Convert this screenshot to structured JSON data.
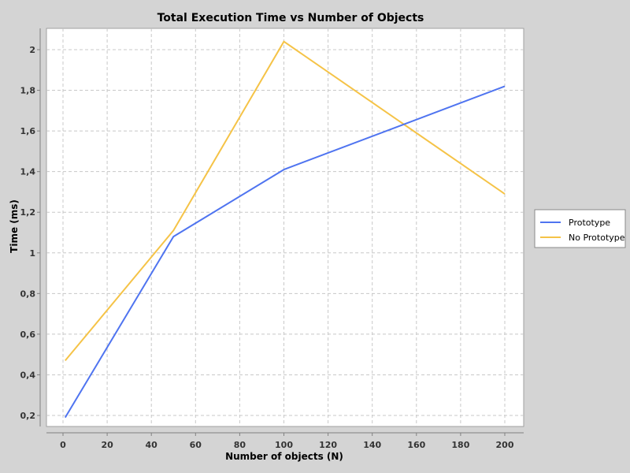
{
  "chart_data": {
    "type": "line",
    "title": "Total Execution Time vs Number of Objects",
    "xlabel": "Number of objects (N)",
    "ylabel": "Time (ms)",
    "x": [
      1,
      50,
      100,
      200
    ],
    "xlim": [
      -8,
      208
    ],
    "ylim": [
      0.15,
      2.12
    ],
    "xticks": [
      0,
      20,
      40,
      60,
      80,
      100,
      120,
      140,
      160,
      180,
      200
    ],
    "xtick_labels": [
      "0",
      "20",
      "40",
      "60",
      "80",
      "100",
      "120",
      "140",
      "160",
      "180",
      "200"
    ],
    "yticks": [
      0.2,
      0.4,
      0.6,
      0.8,
      1.0,
      1.2,
      1.4,
      1.6,
      1.8,
      2.0
    ],
    "ytick_labels": [
      "0,2",
      "0,4",
      "0,6",
      "0,8",
      "1",
      "1,2",
      "1,4",
      "1,6",
      "1,8",
      "2"
    ],
    "grid": true,
    "legend_position": "right",
    "series": [
      {
        "name": "Prototype",
        "color": "#4f74f0",
        "values": [
          0.19,
          1.08,
          1.41,
          1.82
        ]
      },
      {
        "name": "No Prototype",
        "color": "#f5c347",
        "values": [
          0.47,
          1.11,
          2.04,
          1.29
        ]
      }
    ]
  }
}
